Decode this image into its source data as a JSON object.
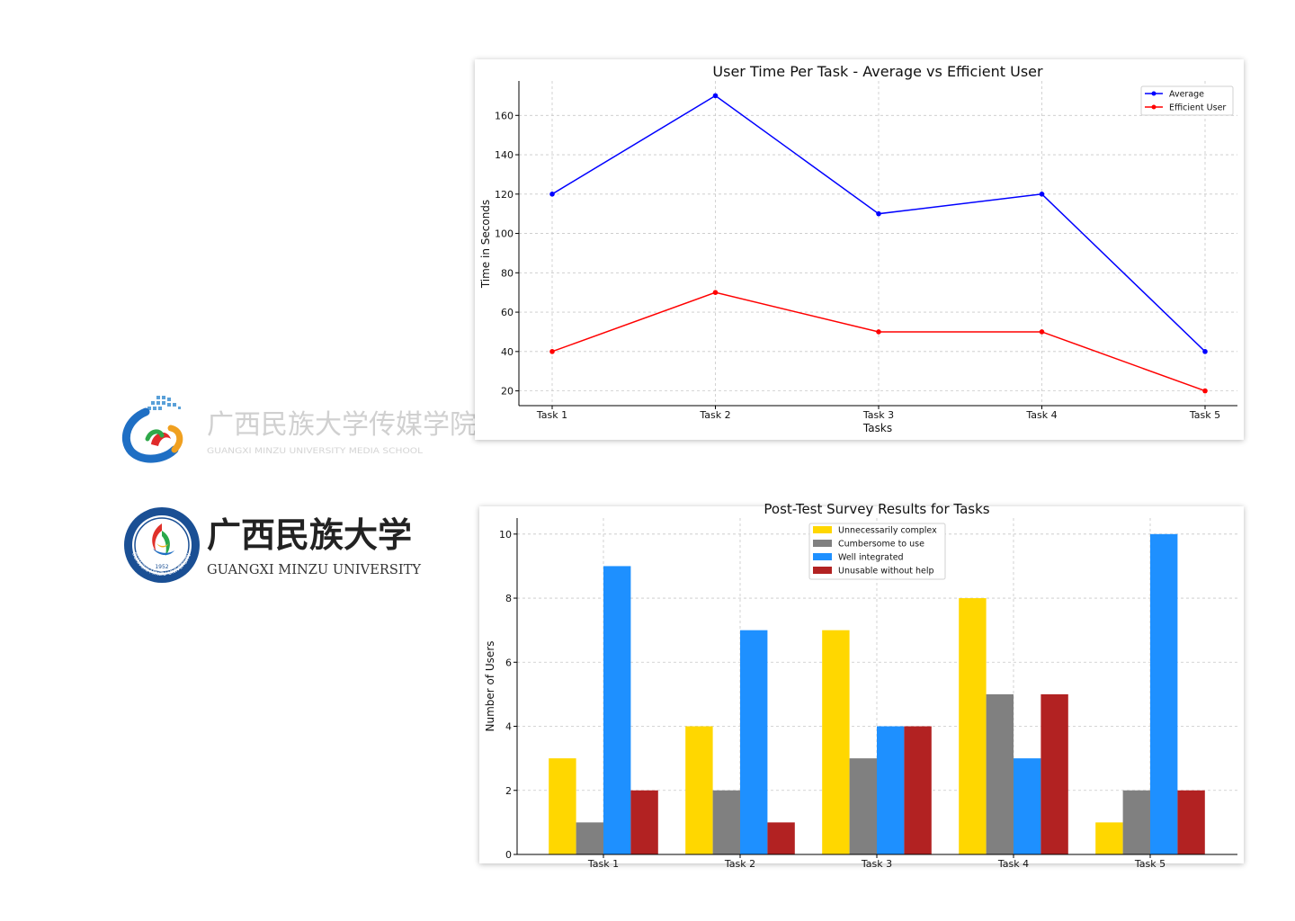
{
  "logos": {
    "media_school": {
      "name_cn": "广西民族大学传媒学院",
      "name_en": "GUANGXI MINZU UNIVERSITY MEDIA SCHOOL"
    },
    "university": {
      "name_cn": "广西民族大学",
      "name_en": "GUANGXI MINZU UNIVERSITY",
      "seal_year": "1952",
      "seal_text": "GUANGXI MINZU UNIVERSITY"
    }
  },
  "chart_data": [
    {
      "type": "line",
      "title": "User Time Per Task - Average vs Efficient User",
      "xlabel": "Tasks",
      "ylabel": "Time in Seconds",
      "categories": [
        "Task 1",
        "Task 2",
        "Task 3",
        "Task 4",
        "Task 5"
      ],
      "ylim": [
        12.5,
        177.5
      ],
      "yticks": [
        20,
        40,
        60,
        80,
        100,
        120,
        140,
        160
      ],
      "grid": true,
      "legend": "top-right",
      "series": [
        {
          "name": "Average",
          "values": [
            120,
            170,
            110,
            120,
            40
          ],
          "color": "#0000ff"
        },
        {
          "name": "Efficient User",
          "values": [
            40,
            70,
            50,
            50,
            20
          ],
          "color": "#ff0000"
        }
      ]
    },
    {
      "type": "bar",
      "title": "Post-Test Survey Results for Tasks",
      "xlabel": "",
      "ylabel": "Number of Users",
      "categories": [
        "Task 1",
        "Task 2",
        "Task 3",
        "Task 4",
        "Task 5"
      ],
      "ylim": [
        0,
        10.5
      ],
      "yticks": [
        0,
        2,
        4,
        6,
        8,
        10
      ],
      "grid": true,
      "legend": "top-center",
      "series": [
        {
          "name": "Unnecessarily complex",
          "values": [
            3,
            4,
            7,
            8,
            1
          ],
          "color": "#ffd700"
        },
        {
          "name": "Cumbersome to use",
          "values": [
            1,
            2,
            3,
            5,
            2
          ],
          "color": "#808080"
        },
        {
          "name": "Well integrated",
          "values": [
            9,
            7,
            4,
            3,
            10
          ],
          "color": "#1e90ff"
        },
        {
          "name": "Unusable without help",
          "values": [
            2,
            1,
            4,
            5,
            2
          ],
          "color": "#b22222"
        }
      ]
    }
  ]
}
